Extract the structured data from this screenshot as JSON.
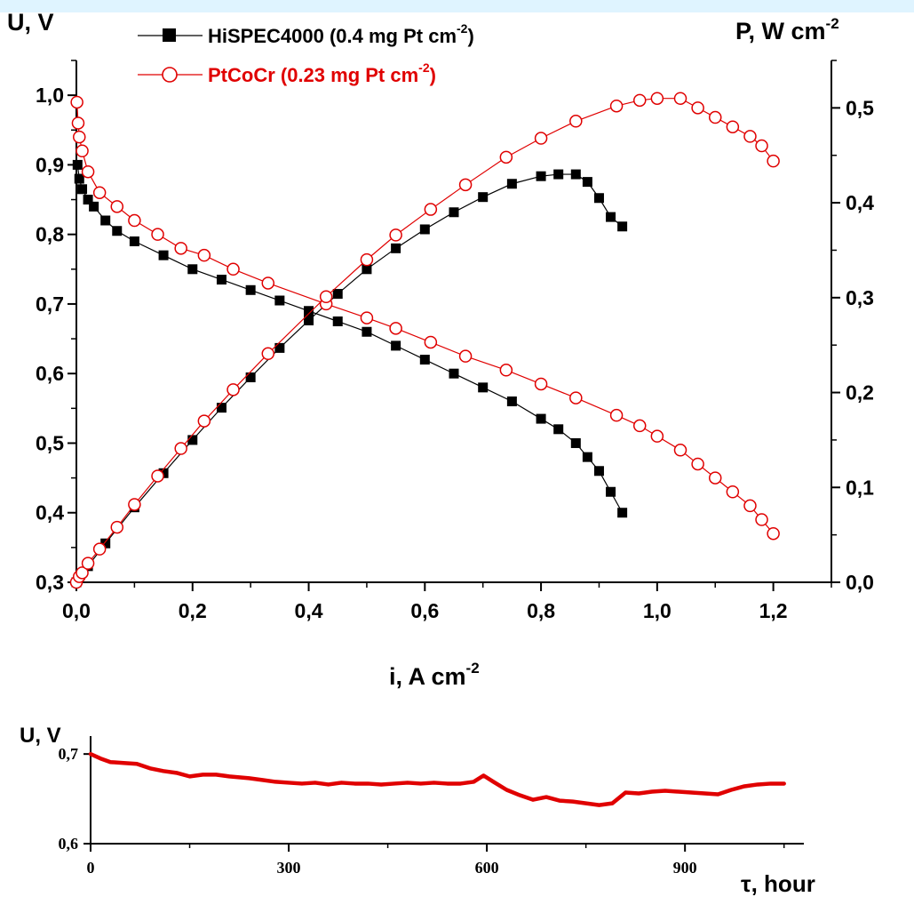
{
  "colors": {
    "series_black": "#000000",
    "series_red": "#e00000",
    "band": "#dff4ff"
  },
  "chart_data": [
    {
      "type": "line",
      "xlabel": "i, A cm",
      "xlabel_sup": "-2",
      "ylabel_left": "U, V",
      "ylabel_right": "P, W cm",
      "ylabel_right_sup": "-2",
      "xlim": [
        0.0,
        1.3
      ],
      "ylim_left": [
        0.3,
        1.05
      ],
      "ylim_right": [
        0.0,
        0.55
      ],
      "xticks": [
        "0,0",
        "0,2",
        "0,4",
        "0,6",
        "0,8",
        "1,0",
        "1,2"
      ],
      "yticks_left": [
        "0,3",
        "0,4",
        "0,5",
        "0,6",
        "0,7",
        "0,8",
        "0,9",
        "1,0"
      ],
      "yticks_right": [
        "0,0",
        "0,1",
        "0,2",
        "0,3",
        "0,4",
        "0,5"
      ],
      "legend": [
        {
          "label": "HiSPEC4000 (0.4 mg Pt cm",
          "sup": "-2",
          "suffix": ")",
          "marker": "square",
          "color": "#000000"
        },
        {
          "label": "PtCoCr (0.23 mg Pt cm",
          "sup": "-2",
          "suffix": ")",
          "marker": "circle",
          "color": "#e00000"
        }
      ],
      "series": [
        {
          "name": "HiSPEC4000 (0.4 mg Pt cm-2)",
          "quantity": "voltage",
          "axis": "left",
          "marker": "square",
          "x": [
            0.002,
            0.005,
            0.01,
            0.02,
            0.03,
            0.05,
            0.07,
            0.1,
            0.15,
            0.2,
            0.25,
            0.3,
            0.35,
            0.4,
            0.45,
            0.5,
            0.55,
            0.6,
            0.65,
            0.7,
            0.75,
            0.8,
            0.83,
            0.86,
            0.88,
            0.9,
            0.92,
            0.94
          ],
          "y": [
            0.9,
            0.88,
            0.865,
            0.85,
            0.84,
            0.82,
            0.805,
            0.79,
            0.77,
            0.75,
            0.735,
            0.72,
            0.705,
            0.69,
            0.675,
            0.66,
            0.64,
            0.62,
            0.6,
            0.58,
            0.56,
            0.535,
            0.52,
            0.5,
            0.48,
            0.46,
            0.43,
            0.4
          ]
        },
        {
          "name": "HiSPEC4000 (0.4 mg Pt cm-2)",
          "quantity": "power",
          "axis": "right",
          "marker": "square",
          "x": [
            0.0,
            0.02,
            0.05,
            0.1,
            0.15,
            0.2,
            0.25,
            0.3,
            0.35,
            0.4,
            0.45,
            0.5,
            0.55,
            0.6,
            0.65,
            0.7,
            0.75,
            0.8,
            0.83,
            0.86,
            0.88,
            0.9,
            0.92,
            0.94
          ],
          "y": [
            0.0,
            0.017,
            0.041,
            0.079,
            0.115,
            0.15,
            0.184,
            0.216,
            0.247,
            0.276,
            0.304,
            0.33,
            0.352,
            0.372,
            0.39,
            0.406,
            0.42,
            0.428,
            0.43,
            0.43,
            0.422,
            0.405,
            0.385,
            0.375
          ]
        },
        {
          "name": "PtCoCr (0.23 mg Pt cm-2)",
          "quantity": "voltage",
          "axis": "left",
          "marker": "circle",
          "x": [
            0.001,
            0.003,
            0.005,
            0.01,
            0.02,
            0.04,
            0.07,
            0.1,
            0.14,
            0.18,
            0.22,
            0.27,
            0.33,
            0.43,
            0.5,
            0.55,
            0.61,
            0.67,
            0.74,
            0.8,
            0.86,
            0.93,
            0.97,
            1.0,
            1.04,
            1.07,
            1.1,
            1.13,
            1.16,
            1.18,
            1.2
          ],
          "y": [
            0.99,
            0.96,
            0.94,
            0.92,
            0.89,
            0.86,
            0.84,
            0.82,
            0.8,
            0.78,
            0.77,
            0.75,
            0.73,
            0.7,
            0.68,
            0.665,
            0.645,
            0.625,
            0.605,
            0.585,
            0.565,
            0.54,
            0.525,
            0.51,
            0.49,
            0.47,
            0.45,
            0.43,
            0.41,
            0.39,
            0.37
          ]
        },
        {
          "name": "PtCoCr (0.23 mg Pt cm-2)",
          "quantity": "power",
          "axis": "right",
          "marker": "circle",
          "x": [
            0.0,
            0.005,
            0.01,
            0.02,
            0.04,
            0.07,
            0.1,
            0.14,
            0.18,
            0.22,
            0.27,
            0.33,
            0.43,
            0.5,
            0.55,
            0.61,
            0.67,
            0.74,
            0.8,
            0.86,
            0.93,
            0.97,
            1.0,
            1.04,
            1.07,
            1.1,
            1.13,
            1.16,
            1.18,
            1.2
          ],
          "y": [
            0.0,
            0.006,
            0.01,
            0.02,
            0.035,
            0.058,
            0.082,
            0.112,
            0.141,
            0.17,
            0.203,
            0.241,
            0.301,
            0.34,
            0.366,
            0.393,
            0.419,
            0.448,
            0.468,
            0.486,
            0.502,
            0.508,
            0.51,
            0.51,
            0.5,
            0.49,
            0.48,
            0.47,
            0.46,
            0.444
          ]
        }
      ]
    },
    {
      "type": "line",
      "xlabel": "τ, hour",
      "ylabel": "U, V",
      "xlim": [
        0,
        1080
      ],
      "ylim": [
        0.6,
        0.72
      ],
      "xticks": [
        "0",
        "300",
        "600",
        "900"
      ],
      "yticks": [
        "0,6",
        "0,7"
      ],
      "series": [
        {
          "name": "",
          "x": [
            0,
            15,
            30,
            50,
            70,
            90,
            110,
            130,
            150,
            170,
            190,
            210,
            240,
            260,
            280,
            300,
            320,
            340,
            360,
            380,
            400,
            420,
            440,
            460,
            480,
            500,
            520,
            540,
            560,
            580,
            595,
            610,
            630,
            650,
            670,
            690,
            710,
            730,
            750,
            770,
            790,
            810,
            830,
            850,
            870,
            890,
            910,
            930,
            950,
            970,
            990,
            1010,
            1030,
            1050
          ],
          "y": [
            0.7,
            0.695,
            0.691,
            0.69,
            0.689,
            0.684,
            0.681,
            0.679,
            0.675,
            0.677,
            0.677,
            0.675,
            0.673,
            0.671,
            0.669,
            0.668,
            0.667,
            0.668,
            0.666,
            0.668,
            0.667,
            0.667,
            0.666,
            0.667,
            0.668,
            0.667,
            0.668,
            0.667,
            0.667,
            0.669,
            0.676,
            0.669,
            0.66,
            0.654,
            0.649,
            0.652,
            0.648,
            0.647,
            0.645,
            0.643,
            0.645,
            0.657,
            0.656,
            0.658,
            0.659,
            0.658,
            0.657,
            0.656,
            0.655,
            0.66,
            0.664,
            0.666,
            0.667,
            0.667
          ]
        }
      ]
    }
  ]
}
